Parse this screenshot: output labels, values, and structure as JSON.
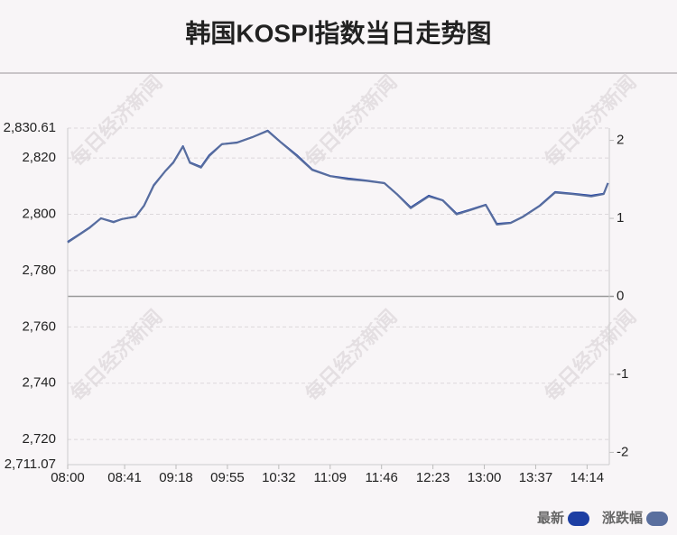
{
  "chart_data": {
    "type": "line",
    "title": "韩国KOSPI指数当日走势图",
    "watermark": "每日经济新闻",
    "x": [
      "08:00",
      "08:10",
      "08:16",
      "08:24",
      "08:33",
      "08:39",
      "08:49",
      "08:55",
      "09:02",
      "09:10",
      "09:16",
      "09:23",
      "09:28",
      "09:36",
      "09:42",
      "09:51",
      "10:02",
      "10:13",
      "10:24",
      "10:33",
      "10:45",
      "10:56",
      "11:09",
      "11:22",
      "11:35",
      "11:48",
      "11:57",
      "12:07",
      "12:20",
      "12:30",
      "12:40",
      "12:49",
      "13:01",
      "13:09",
      "13:19",
      "13:28",
      "13:40",
      "13:51",
      "14:04",
      "14:17",
      "14:26",
      "14:29"
    ],
    "xlim": [
      "08:00",
      "14:30"
    ],
    "xticks": [
      "08:00",
      "08:41",
      "09:18",
      "09:55",
      "10:32",
      "11:09",
      "11:46",
      "12:23",
      "13:00",
      "13:37",
      "14:14"
    ],
    "ylim": [
      2711.07,
      2830.61
    ],
    "yticks": [
      {
        "value": 2711.07,
        "label": "2,711.07"
      },
      {
        "value": 2720,
        "label": "2,720"
      },
      {
        "value": 2740,
        "label": "2,740"
      },
      {
        "value": 2760,
        "label": "2,760"
      },
      {
        "value": 2780,
        "label": "2,780"
      },
      {
        "value": 2800,
        "label": "2,800"
      },
      {
        "value": 2820,
        "label": "2,820"
      },
      {
        "value": 2830.61,
        "label": "2,830.61"
      }
    ],
    "y2lim": [
      -2.157,
      2.157
    ],
    "y2ticks": [
      -2,
      -1,
      0,
      1,
      2
    ],
    "grid": true,
    "legend": "bottom-right",
    "series": [
      {
        "name": "最新",
        "color": "#1d3fa3",
        "values": [
          2790.2,
          2793.4,
          2795.4,
          2798.6,
          2797.3,
          2798.3,
          2799.2,
          2803.1,
          2810.4,
          2815.2,
          2818.4,
          2824.2,
          2818.4,
          2816.8,
          2821.0,
          2824.9,
          2825.5,
          2827.4,
          2829.7,
          2825.8,
          2821.0,
          2815.9,
          2813.6,
          2812.7,
          2812.0,
          2811.1,
          2807.2,
          2802.4,
          2806.6,
          2805.0,
          2800.2,
          2801.5,
          2803.4,
          2796.6,
          2797.0,
          2799.2,
          2803.1,
          2807.9,
          2807.3,
          2806.6,
          2807.3,
          2811.1
        ]
      },
      {
        "name": "涨跌幅",
        "color": "#5a6f9e",
        "axis": "y2",
        "values": [
          0.69,
          0.81,
          0.88,
          1.0,
          0.95,
          0.99,
          1.02,
          1.16,
          1.42,
          1.6,
          1.71,
          1.92,
          1.71,
          1.65,
          1.8,
          1.95,
          1.97,
          2.04,
          2.12,
          1.98,
          1.8,
          1.62,
          1.54,
          1.5,
          1.48,
          1.45,
          1.31,
          1.13,
          1.28,
          1.23,
          1.05,
          1.1,
          1.17,
          0.92,
          0.94,
          1.02,
          1.16,
          1.33,
          1.31,
          1.28,
          1.31,
          1.45
        ]
      }
    ]
  }
}
